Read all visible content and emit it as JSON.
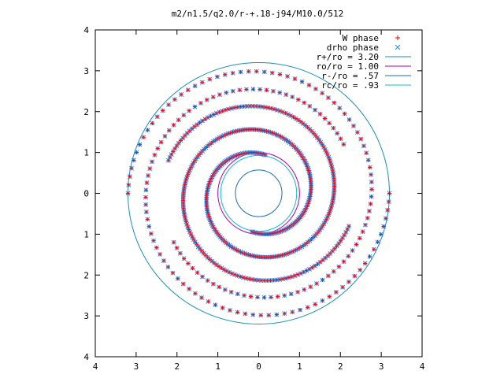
{
  "chart_data": {
    "type": "scatter",
    "title": "m2/n1.5/q2.0/r-+.18-j94/M10.0/512",
    "xlim": [
      -4,
      4
    ],
    "ylim": [
      -4,
      4
    ],
    "x_ticks": [
      -4,
      -3,
      -2,
      -1,
      0,
      1,
      2,
      3,
      4
    ],
    "y_ticks": [
      -4,
      -3,
      -2,
      -1,
      0,
      1,
      2,
      3,
      4
    ],
    "x_tick_labels": [
      "4",
      "3",
      "2",
      "1",
      "0",
      "1",
      "2",
      "3",
      "4"
    ],
    "y_tick_labels": [
      "4",
      "3",
      "2",
      "1",
      "0",
      "1",
      "2",
      "3",
      "4"
    ],
    "grid": false,
    "legend_position": "top-right",
    "series": [
      {
        "name": "W phase",
        "marker": "plus",
        "color": "#ff0000",
        "role": "points"
      },
      {
        "name": "drho phase",
        "marker": "x",
        "color": "#1e90ff",
        "role": "points"
      },
      {
        "name": "r+/ro = 3.20",
        "color": "#1a8fbf",
        "type": "circle",
        "radius": 3.2
      },
      {
        "name": "ro/ro = 1.00",
        "color": "#b000b0",
        "type": "circle",
        "radius": 1.0
      },
      {
        "name": "r-/ro = .57",
        "color": "#1a6fbf",
        "type": "circle",
        "radius": 0.57
      },
      {
        "name": "rc/ro = .93",
        "color": "#10c0c0",
        "type": "circle",
        "radius": 0.93
      }
    ],
    "arms": {
      "inner": {
        "theta_start_deg": 80,
        "theta_end_deg": 520,
        "r_start": 0.95,
        "r_end": 2.35,
        "count": 220
      },
      "outer": {
        "theta_start_deg": 30,
        "theta_end_deg": 360,
        "r_start": 2.4,
        "r_end": 3.2,
        "count": 90
      }
    }
  }
}
